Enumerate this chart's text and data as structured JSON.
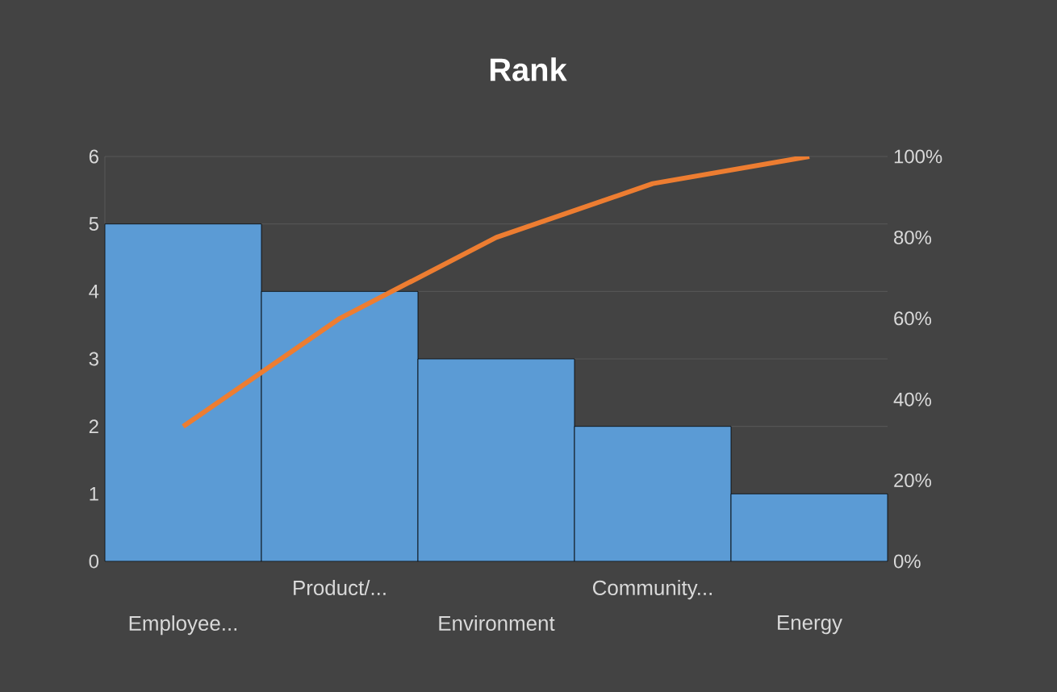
{
  "chart_data": {
    "type": "bar",
    "title": "Rank",
    "categories": [
      "Employee...",
      "Product/...",
      "Environment",
      "Community...",
      "Energy"
    ],
    "series": [
      {
        "color": "#5b9bd5",
        "values": [
          5,
          4,
          3,
          2,
          1
        ]
      },
      {
        "type": "line",
        "axis": "y2",
        "color": "#ed7d31",
        "values": [
          33.3,
          60,
          80,
          93.3,
          100
        ]
      }
    ],
    "ylim": [
      0,
      6
    ],
    "yticks": [
      0,
      1,
      2,
      3,
      4,
      5,
      6
    ],
    "y2lim": [
      0,
      100
    ],
    "y2ticks": [
      {
        "value": 0,
        "label": "0%"
      },
      {
        "value": 20,
        "label": "20%"
      },
      {
        "value": 40,
        "label": "40%"
      },
      {
        "value": 60,
        "label": "60%"
      },
      {
        "value": 80,
        "label": "80%"
      },
      {
        "value": 100,
        "label": "100%"
      }
    ],
    "grid": "y",
    "legend": false,
    "marker": "none",
    "line_style": "solid"
  }
}
